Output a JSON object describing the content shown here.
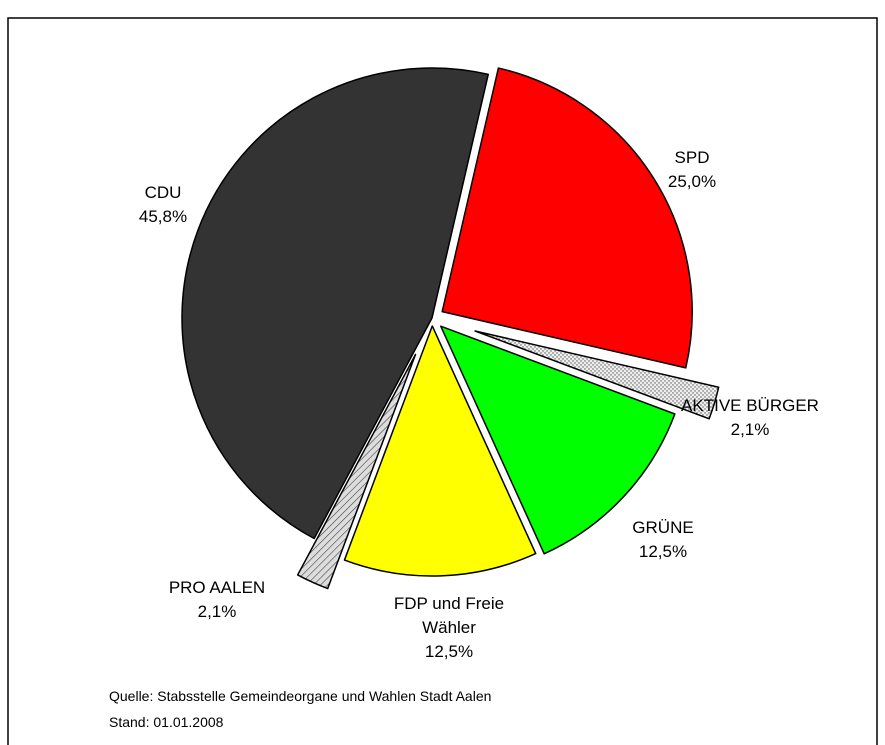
{
  "chart_data": {
    "type": "pie",
    "categories": [
      "SPD",
      "AKTIVE BÜRGER",
      "GRÜNE",
      "FDP und Freie Wähler",
      "PRO AALEN",
      "CDU"
    ],
    "values": [
      25.0,
      2.1,
      12.5,
      12.5,
      2.1,
      45.8
    ],
    "value_labels": [
      "25,0%",
      "2,1%",
      "12,5%",
      "12,5%",
      "2,1%",
      "45,8%"
    ],
    "colors": [
      "#ff0000",
      "#e6e6e6",
      "#00ff00",
      "#ffff00",
      "#cccccc",
      "#333333"
    ],
    "patterns": [
      null,
      "dots",
      null,
      null,
      "hatch",
      null
    ],
    "notes": [
      "Quelle: Stabsstelle Gemeindeorgane und Wahlen Stadt Aalen",
      "Stand: 01.01.2008"
    ]
  }
}
